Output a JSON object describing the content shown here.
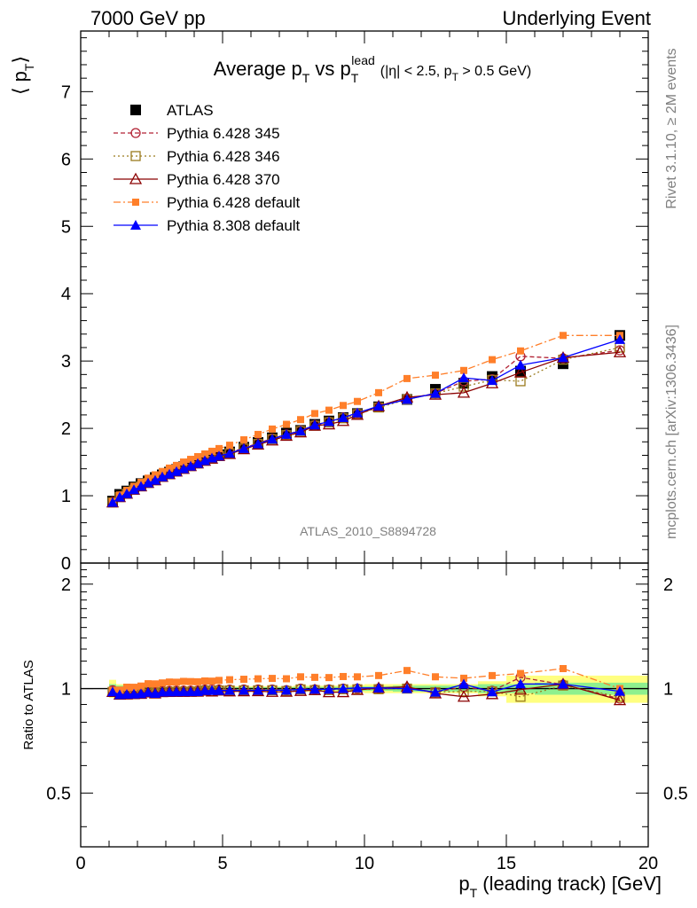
{
  "header": {
    "left": "7000 GeV pp",
    "right": "Underlying Event"
  },
  "title": {
    "main": "Average p",
    "main_sub": "T",
    "vs": " vs p",
    "vs_sub": "T",
    "vs_sup": "lead",
    "cut": "(|η| < 2.5, p",
    "cut_sub": "T",
    "cut_end": " > 0.5 GeV)"
  },
  "ylabel_top": "⟨ p",
  "ylabel_top_sub": "T",
  "ylabel_top_end": "⟩",
  "ylabel_bottom": "Ratio to ATLAS",
  "xlabel": "p",
  "xlabel_sub": "T",
  "xlabel_end": " (leading track) [GeV]",
  "analysis_id": "ATLAS_2010_S8894728",
  "side_text_top": "Rivet 3.1.10, ≥ 2M events",
  "side_text_bottom": "mcplots.cern.ch [arXiv:1306.3436]",
  "legend_placement": "top-left",
  "colors": {
    "data": "#000000",
    "p345": "#b22234",
    "p346": "#9a7b1e",
    "p370": "#8b0000",
    "p6def": "#ff7f2a",
    "p8def": "#0000ff",
    "band_inner": "#8ef08e",
    "band_outer": "#ffff80"
  },
  "chart_data": {
    "type": "line",
    "xlim": [
      0,
      20
    ],
    "main_ylim": [
      0,
      7.9
    ],
    "ratio_ylim": [
      0.35,
      2.3
    ],
    "x_ticks": [
      "0",
      "5",
      "10",
      "15",
      "20"
    ],
    "main_y_ticks": [
      "0",
      "1",
      "2",
      "3",
      "4",
      "5",
      "6",
      "7"
    ],
    "ratio_y_ticks": [
      "0.5",
      "1",
      "2"
    ],
    "x": [
      1.125,
      1.375,
      1.625,
      1.875,
      2.125,
      2.375,
      2.625,
      2.875,
      3.125,
      3.375,
      3.625,
      3.875,
      4.125,
      4.375,
      4.625,
      4.875,
      5.25,
      5.75,
      6.25,
      6.75,
      7.25,
      7.75,
      8.25,
      8.75,
      9.25,
      9.75,
      10.5,
      11.5,
      12.5,
      13.5,
      14.5,
      15.5,
      17,
      19
    ],
    "data_series": {
      "name": "ATLAS",
      "values": [
        0.92,
        1.02,
        1.07,
        1.13,
        1.18,
        1.22,
        1.27,
        1.31,
        1.35,
        1.39,
        1.43,
        1.47,
        1.51,
        1.54,
        1.58,
        1.61,
        1.65,
        1.72,
        1.79,
        1.86,
        1.93,
        1.97,
        2.06,
        2.11,
        2.16,
        2.22,
        2.32,
        2.43,
        2.58,
        2.67,
        2.77,
        2.85,
        2.96,
        3.38
      ]
    },
    "series": [
      {
        "name": "Pythia 6.428 345",
        "values": [
          0.91,
          0.99,
          1.04,
          1.1,
          1.15,
          1.2,
          1.24,
          1.29,
          1.33,
          1.37,
          1.41,
          1.45,
          1.49,
          1.53,
          1.57,
          1.6,
          1.64,
          1.71,
          1.78,
          1.85,
          1.91,
          1.97,
          2.05,
          2.1,
          2.16,
          2.22,
          2.32,
          2.44,
          2.52,
          2.7,
          2.73,
          3.07,
          3.04,
          3.16
        ]
      },
      {
        "name": "Pythia 6.428 346",
        "values": [
          0.9,
          0.98,
          1.03,
          1.09,
          1.14,
          1.19,
          1.23,
          1.28,
          1.32,
          1.36,
          1.4,
          1.44,
          1.48,
          1.52,
          1.55,
          1.59,
          1.63,
          1.7,
          1.77,
          1.84,
          1.9,
          1.96,
          2.04,
          2.09,
          2.15,
          2.21,
          2.31,
          2.43,
          2.52,
          2.62,
          2.72,
          2.7,
          3.02,
          3.2
        ]
      },
      {
        "name": "Pythia 6.428 370",
        "values": [
          0.9,
          0.98,
          1.03,
          1.09,
          1.14,
          1.19,
          1.23,
          1.28,
          1.32,
          1.36,
          1.4,
          1.44,
          1.48,
          1.52,
          1.55,
          1.59,
          1.62,
          1.69,
          1.76,
          1.82,
          1.89,
          1.94,
          2.04,
          2.06,
          2.11,
          2.2,
          2.33,
          2.46,
          2.5,
          2.53,
          2.67,
          2.83,
          3.05,
          3.13
        ]
      },
      {
        "name": "Pythia 6.428 default",
        "values": [
          0.91,
          1.01,
          1.08,
          1.14,
          1.2,
          1.26,
          1.31,
          1.36,
          1.41,
          1.45,
          1.5,
          1.54,
          1.58,
          1.62,
          1.66,
          1.7,
          1.75,
          1.83,
          1.91,
          1.99,
          2.06,
          2.13,
          2.22,
          2.27,
          2.34,
          2.4,
          2.53,
          2.74,
          2.79,
          2.86,
          3.02,
          3.15,
          3.38,
          3.38
        ]
      },
      {
        "name": "Pythia 8.308 default",
        "values": [
          0.9,
          0.98,
          1.03,
          1.09,
          1.14,
          1.19,
          1.23,
          1.28,
          1.32,
          1.36,
          1.4,
          1.44,
          1.48,
          1.52,
          1.56,
          1.59,
          1.63,
          1.7,
          1.77,
          1.84,
          1.91,
          1.96,
          2.05,
          2.1,
          2.16,
          2.23,
          2.33,
          2.43,
          2.52,
          2.75,
          2.71,
          2.94,
          3.05,
          3.32
        ]
      }
    ],
    "uncertainty_bands": {
      "x_edges": [
        1.0,
        1.25,
        1.5,
        1.75,
        2.0,
        2.25,
        2.5,
        2.75,
        3.0,
        3.25,
        3.5,
        3.75,
        4.0,
        4.25,
        4.5,
        4.75,
        5.0,
        5.5,
        6.0,
        6.5,
        7.0,
        7.5,
        8.0,
        8.5,
        9.0,
        9.5,
        10.0,
        11.0,
        12.0,
        13.0,
        14.0,
        15.0,
        16.0,
        18.0,
        20.0
      ],
      "stat_rel": [
        0.03,
        0.02,
        0.015,
        0.012,
        0.01,
        0.01,
        0.01,
        0.01,
        0.01,
        0.01,
        0.01,
        0.01,
        0.01,
        0.01,
        0.01,
        0.01,
        0.01,
        0.01,
        0.01,
        0.01,
        0.01,
        0.012,
        0.012,
        0.012,
        0.012,
        0.015,
        0.015,
        0.02,
        0.02,
        0.02,
        0.03,
        0.03,
        0.04,
        0.04
      ],
      "total_rel": [
        0.06,
        0.03,
        0.02,
        0.015,
        0.015,
        0.015,
        0.015,
        0.015,
        0.015,
        0.015,
        0.015,
        0.015,
        0.015,
        0.015,
        0.015,
        0.015,
        0.015,
        0.015,
        0.015,
        0.015,
        0.015,
        0.02,
        0.02,
        0.02,
        0.02,
        0.025,
        0.03,
        0.03,
        0.03,
        0.03,
        0.05,
        0.09,
        0.09,
        0.09
      ]
    }
  }
}
